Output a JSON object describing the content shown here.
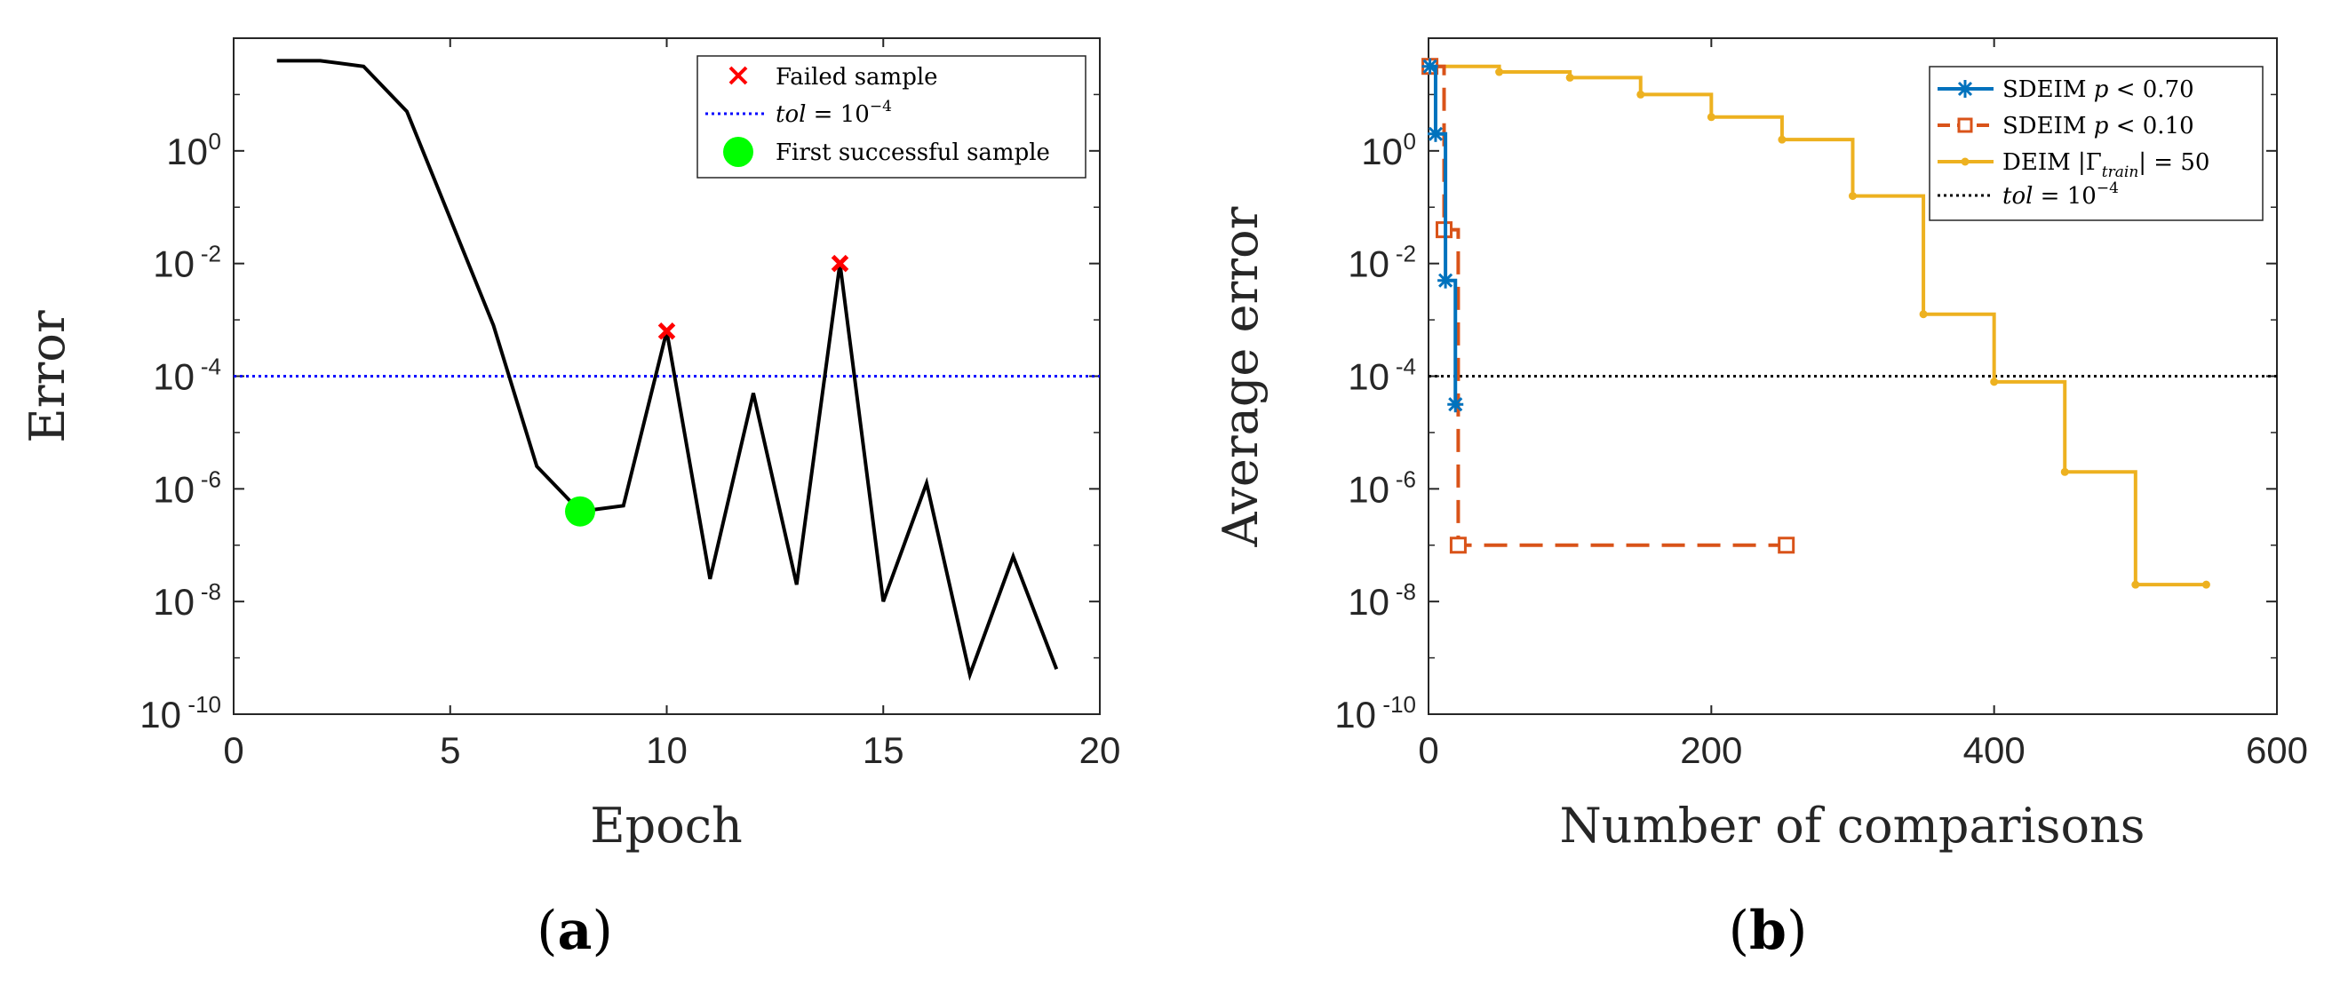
{
  "colors": {
    "black": "#000000",
    "blue_dotted": "#0000ff",
    "red_x": "#ff0000",
    "green": "#00ff00",
    "sdeim70": "#0072bd",
    "sdeim10": "#d95319",
    "deim": "#edb120"
  },
  "chart_data": [
    {
      "id": "a",
      "type": "line",
      "subfigure_label": "(a)",
      "subfigure_letter": "a",
      "xlabel": "Epoch",
      "ylabel": "Error",
      "yscale": "log",
      "xlim": [
        0,
        20
      ],
      "ylim_exp": [
        -10,
        2
      ],
      "xticks": [
        0,
        5,
        10,
        15,
        20
      ],
      "yticks_exp": [
        0,
        -2,
        -4,
        -6,
        -8,
        -10
      ],
      "series": [
        {
          "name": "Error",
          "style": "solid",
          "color": "#000000",
          "x": [
            1,
            2,
            3,
            4,
            5,
            6,
            7,
            8,
            9,
            10,
            11,
            12,
            13,
            14,
            15,
            16,
            17,
            18,
            19
          ],
          "y_exp": [
            1.6,
            1.6,
            1.5,
            0.7,
            -1.2,
            -3.1,
            -5.6,
            -6.4,
            -6.3,
            -3.2,
            -7.6,
            -4.3,
            -7.7,
            -2.0,
            -8.0,
            -5.9,
            -9.3,
            -7.2,
            -9.2
          ]
        }
      ],
      "failed_samples": {
        "x": [
          10,
          14
        ],
        "y_exp": [
          -3.2,
          -2.0
        ]
      },
      "first_success": {
        "x": 8,
        "y_exp": -6.4
      },
      "tol_exp": -4,
      "legend": {
        "position": "top-right",
        "items": [
          {
            "text": "Failed sample"
          },
          {
            "text_italic": "tol",
            "text_eq": " = 10",
            "text_sup": "−4"
          },
          {
            "text": "First successful sample"
          }
        ]
      }
    },
    {
      "id": "b",
      "type": "line",
      "subfigure_label": "(b)",
      "subfigure_letter": "b",
      "xlabel": "Number of comparisons",
      "ylabel": "Average error",
      "yscale": "log",
      "xlim": [
        0,
        600
      ],
      "ylim_exp": [
        -10,
        2
      ],
      "xticks": [
        0,
        200,
        400,
        600
      ],
      "yticks_exp": [
        0,
        -2,
        -4,
        -6,
        -8,
        -10
      ],
      "series": [
        {
          "name": "SDEIM p < 0.70",
          "color": "#0072bd",
          "style": "solid",
          "marker": "star",
          "x": [
            1,
            5,
            12,
            19
          ],
          "y_exp": [
            1.5,
            0.3,
            -2.3,
            -4.5
          ],
          "step": true
        },
        {
          "name": "SDEIM p < 0.10",
          "color": "#d95319",
          "style": "dashed",
          "marker": "square",
          "x": [
            1,
            11,
            21,
            253
          ],
          "y_exp": [
            1.5,
            -1.4,
            -7.0,
            -7.0
          ],
          "step": true
        },
        {
          "name": "DEIM |Γtrain| = 50",
          "color": "#edb120",
          "style": "solid",
          "marker": "dot",
          "x": [
            1,
            50,
            100,
            150,
            200,
            250,
            300,
            350,
            400,
            450,
            500,
            550
          ],
          "y_exp": [
            1.5,
            1.4,
            1.3,
            1.0,
            0.6,
            0.2,
            -0.8,
            -2.9,
            -4.1,
            -5.7,
            -7.7,
            -7.7
          ],
          "step": true
        }
      ],
      "tol_exp": -4,
      "legend": {
        "position": "top-right",
        "items": [
          {
            "text": "SDEIM ",
            "text_italic": "p",
            "text_rest": " < 0.70"
          },
          {
            "text": "SDEIM ",
            "text_italic": "p",
            "text_rest": " < 0.10"
          },
          {
            "text": "DEIM |Γ",
            "text_sub": "train",
            "text_rest": "| = 50"
          },
          {
            "text_italic": "tol",
            "text_eq": " = 10",
            "text_sup": "−4"
          }
        ]
      }
    }
  ]
}
